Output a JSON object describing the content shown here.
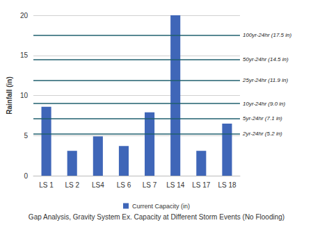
{
  "chart_data": {
    "type": "bar",
    "title": "Gap Analysis, Gravity System Ex. Capacity at Different Storm Events (No Flooding)",
    "y_label": "Rainfall (in)",
    "categories": [
      "LS 1",
      "LS 2",
      "LS4",
      "LS 6",
      "LS 7",
      "LS 14",
      "LS 17",
      "LS 18"
    ],
    "series": [
      {
        "name": "Current Capacity (in)",
        "color": "#3f66b8",
        "values": [
          8.6,
          3.1,
          4.9,
          3.7,
          7.9,
          20,
          3.1,
          6.5
        ]
      }
    ],
    "ylim": [
      0,
      20
    ],
    "yticks": [
      0,
      5,
      10,
      15,
      20
    ],
    "grid": true,
    "legend": "bottom",
    "reference_lines": [
      {
        "value": 17.5,
        "label": "100yr-24hr (17.5 in)"
      },
      {
        "value": 14.5,
        "label": "50yr-24hr (14.5 in)"
      },
      {
        "value": 11.9,
        "label": "25yr-24hr (11.9 in)"
      },
      {
        "value": 9.0,
        "label": "10yr-24hr (9.0 in)"
      },
      {
        "value": 7.1,
        "label": "5yr-24hr (7.1 in)"
      },
      {
        "value": 5.2,
        "label": "2yr-24hr (5.2 in)"
      }
    ]
  }
}
